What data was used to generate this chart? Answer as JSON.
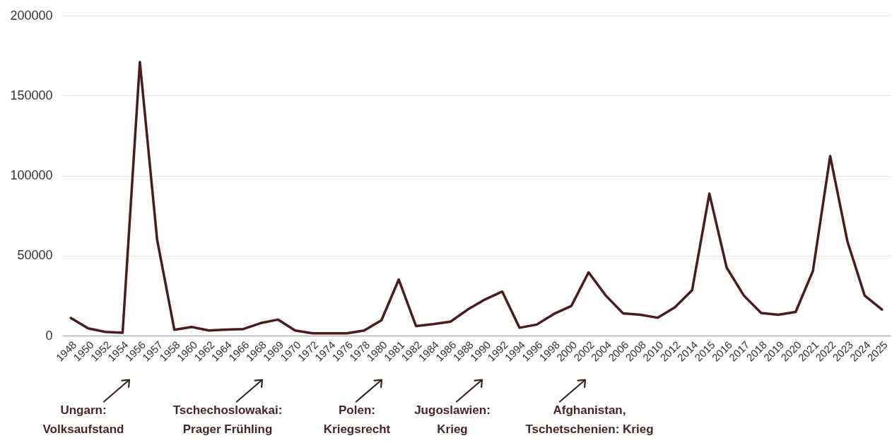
{
  "chart_data": {
    "type": "line",
    "categories": [
      "1948",
      "1950",
      "1952",
      "1954",
      "1956",
      "1957",
      "1958",
      "1960",
      "1962",
      "1964",
      "1966",
      "1968",
      "1969",
      "1970",
      "1972",
      "1974",
      "1976",
      "1978",
      "1980",
      "1981",
      "1982",
      "1984",
      "1986",
      "1988",
      "1990",
      "1992",
      "1994",
      "1996",
      "1998",
      "2000",
      "2002",
      "2004",
      "2006",
      "2008",
      "2010",
      "2012",
      "2014",
      "2015",
      "2016",
      "2017",
      "2018",
      "2019",
      "2020",
      "2021",
      "2022",
      "2023",
      "2024",
      "2025"
    ],
    "series": [
      {
        "color": "#4a1c1e",
        "values": [
          11000,
          4500,
          2300,
          1800,
          171000,
          60000,
          3600,
          5400,
          3200,
          3800,
          4100,
          7800,
          10000,
          3200,
          1400,
          1400,
          1400,
          3200,
          9600,
          35000,
          6000,
          7200,
          8700,
          16300,
          22600,
          27500,
          4900,
          6900,
          13600,
          18500,
          39500,
          25000,
          13900,
          13000,
          11200,
          17700,
          28400,
          88700,
          42500,
          25000,
          14100,
          13000,
          14800,
          40400,
          112200,
          58800,
          25000,
          16300
        ]
      }
    ],
    "ylim": [
      0,
      200000
    ],
    "yticks": [
      0,
      50000,
      100000,
      150000,
      200000
    ],
    "grid": "y",
    "line_style": "solid",
    "annotations": [
      "Ungarn:\nVolksaufstand",
      "Tschechoslowakai:\nPrager Frühling",
      "Polen:\nKriegsrecht",
      "Jugoslawien:\nKrieg",
      "Afghanistan,\nTschetschenien: Krieg"
    ]
  }
}
